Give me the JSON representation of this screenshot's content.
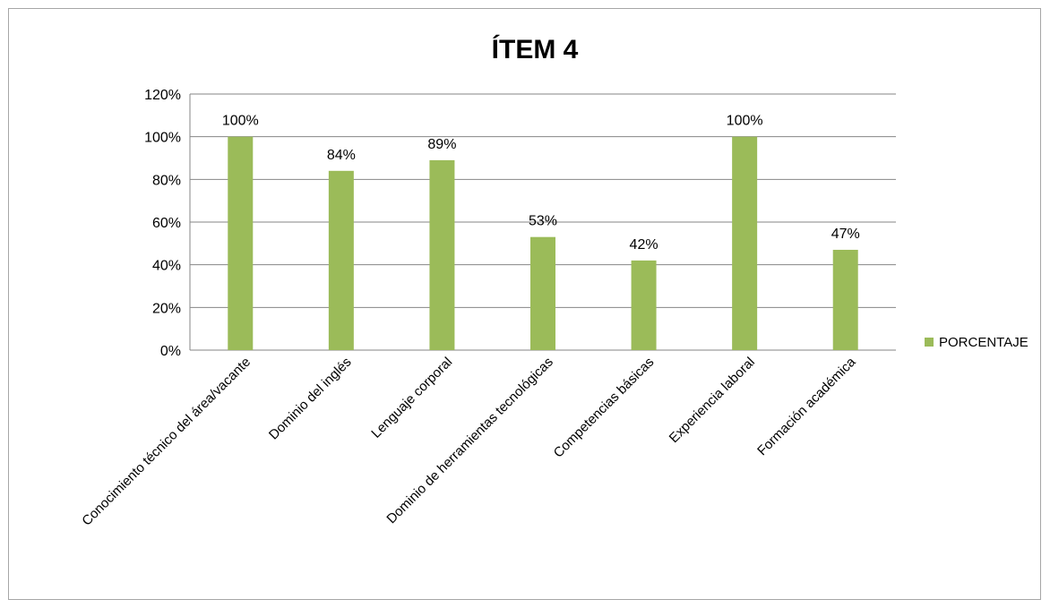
{
  "chart_data": {
    "type": "bar",
    "title": "ÍTEM 4",
    "xlabel": "",
    "ylabel": "",
    "categories": [
      "Conocimiento técnico del área/vacante",
      "Dominio del inglés",
      "Lenguaje corporal",
      "Dominio de herramientas tecnológicas",
      "Competencias básicas",
      "Experiencia laboral",
      "Formación académica"
    ],
    "series": [
      {
        "name": "PORCENTAJE",
        "values": [
          100,
          84,
          89,
          53,
          42,
          100,
          47
        ],
        "labels": [
          "100%",
          "84%",
          "89%",
          "53%",
          "42%",
          "100%",
          "47%"
        ],
        "color": "#9bbb59"
      }
    ],
    "ylim": [
      0,
      120
    ],
    "yticks": [
      0,
      20,
      40,
      60,
      80,
      100,
      120
    ],
    "ytick_labels": [
      "0%",
      "20%",
      "40%",
      "60%",
      "80%",
      "100%",
      "120%"
    ],
    "grid": true,
    "gridline_color": "#868686",
    "legend_position": "right"
  }
}
